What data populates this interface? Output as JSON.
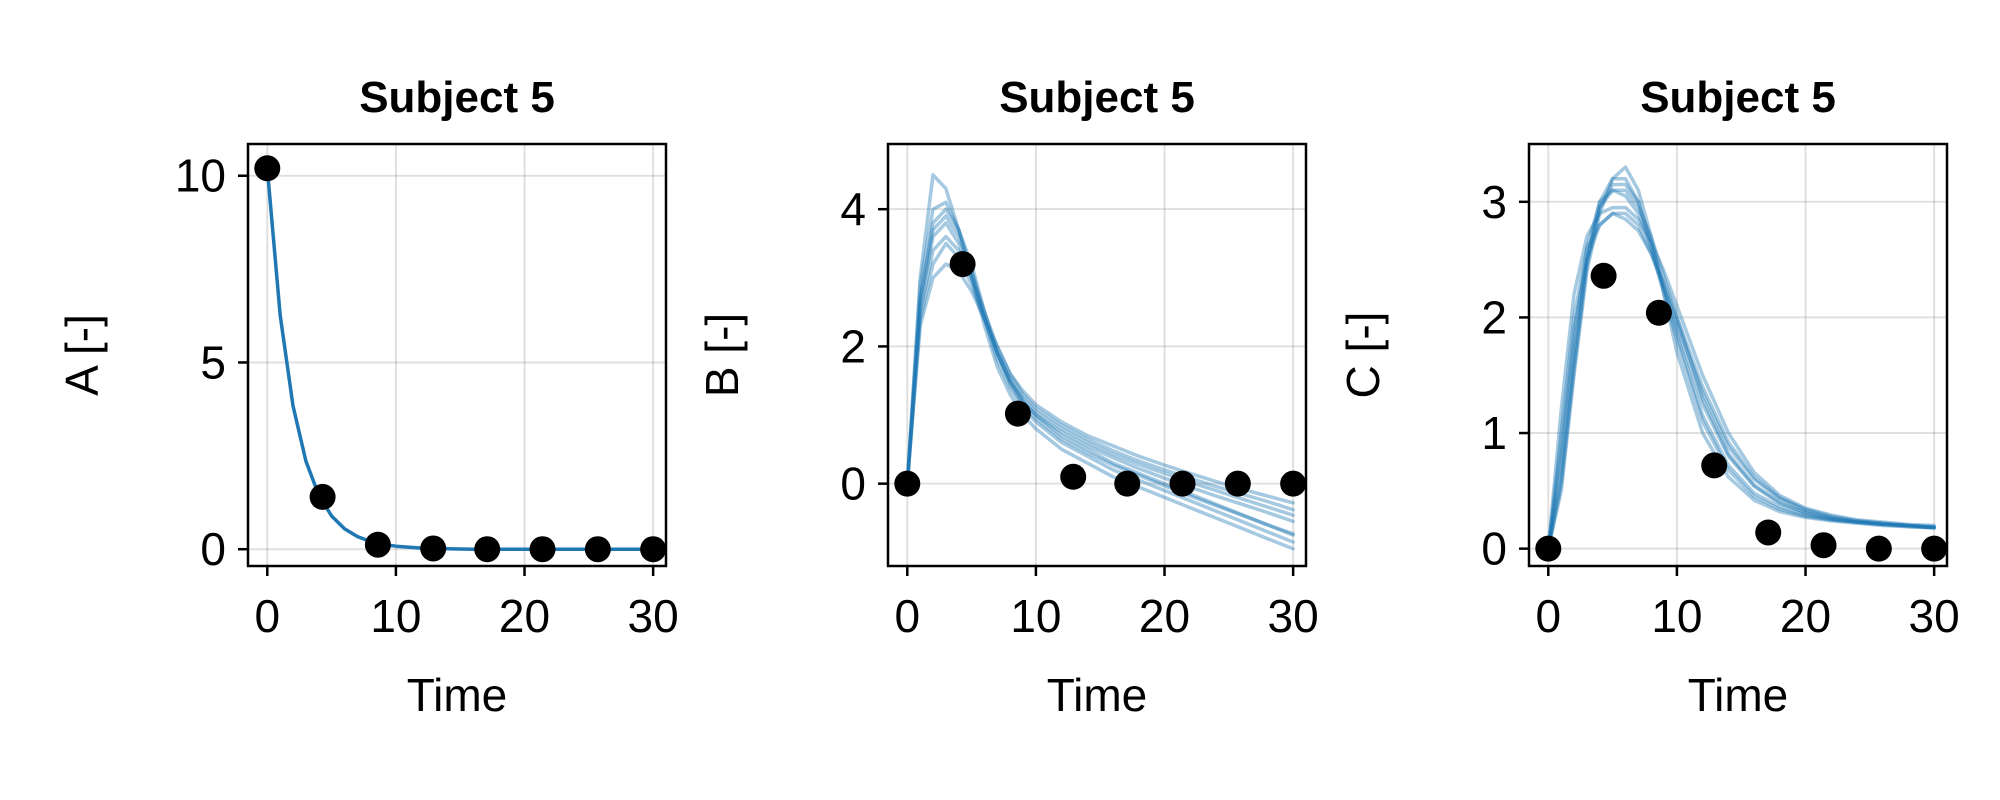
{
  "chart_data": [
    {
      "type": "line",
      "title": "Subject 5",
      "xlabel": "Time",
      "ylabel": "A [-]",
      "xlim": [
        -1.5,
        31
      ],
      "ylim": [
        -0.45,
        10.85
      ],
      "xticks": [
        0,
        10,
        20,
        30
      ],
      "yticks": [
        0,
        5,
        10
      ],
      "grid": true,
      "line_color": "#1f77b4",
      "point_color": "#000000",
      "observations": {
        "x": [
          0,
          4.3,
          8.6,
          12.9,
          17.1,
          21.4,
          25.7,
          30
        ],
        "y": [
          10.2,
          1.4,
          0.12,
          0.02,
          0.0,
          0.0,
          0.0,
          0.0
        ]
      },
      "series": [
        {
          "x": [
            0,
            1,
            2,
            3,
            4,
            5,
            6,
            7,
            8,
            9,
            10,
            12,
            14,
            16,
            18,
            20,
            22,
            24,
            26,
            28,
            30
          ],
          "y": [
            10.2,
            6.26,
            3.84,
            2.36,
            1.45,
            0.89,
            0.55,
            0.34,
            0.21,
            0.13,
            0.08,
            0.03,
            0.01,
            0.0,
            0.0,
            0.0,
            0.0,
            0.0,
            0.0,
            0.0,
            0.0
          ]
        }
      ]
    },
    {
      "type": "line",
      "title": "Subject 5",
      "xlabel": "Time",
      "ylabel": "B [-]",
      "xlim": [
        -1.5,
        31
      ],
      "ylim": [
        -1.2,
        4.95
      ],
      "xticks": [
        0,
        10,
        20,
        30
      ],
      "yticks": [
        0,
        2,
        4
      ],
      "grid": true,
      "line_color": "#1f77b4",
      "point_color": "#000000",
      "observations": {
        "x": [
          0,
          4.3,
          8.6,
          12.9,
          17.1,
          21.4,
          25.7,
          30
        ],
        "y": [
          0.0,
          3.2,
          1.02,
          0.1,
          0.0,
          0.0,
          0.0,
          0.0
        ]
      },
      "series": [
        {
          "x": [
            0,
            1,
            2,
            3,
            4,
            5,
            6,
            7,
            8,
            9,
            10,
            12,
            14,
            16,
            18,
            20,
            22,
            24,
            26,
            28,
            30
          ],
          "y": [
            0,
            3.0,
            4.5,
            4.3,
            3.7,
            3.0,
            2.3,
            1.7,
            1.3,
            1.0,
            0.8,
            0.5,
            0.3,
            0.1,
            -0.05,
            -0.2,
            -0.35,
            -0.5,
            -0.65,
            -0.8,
            -0.95
          ]
        },
        {
          "x": [
            0,
            1,
            2,
            3,
            4,
            5,
            6,
            7,
            8,
            9,
            10,
            12,
            14,
            16,
            18,
            20,
            22,
            24,
            26,
            28,
            30
          ],
          "y": [
            0,
            2.9,
            4.0,
            4.1,
            3.7,
            3.1,
            2.4,
            1.8,
            1.4,
            1.1,
            0.9,
            0.6,
            0.4,
            0.2,
            0.05,
            -0.1,
            -0.25,
            -0.4,
            -0.55,
            -0.7,
            -0.85
          ]
        },
        {
          "x": [
            0,
            1,
            2,
            3,
            4,
            5,
            6,
            7,
            8,
            9,
            10,
            12,
            14,
            16,
            18,
            20,
            22,
            24,
            26,
            28,
            30
          ],
          "y": [
            0,
            2.7,
            3.7,
            3.9,
            3.6,
            3.1,
            2.5,
            1.9,
            1.5,
            1.2,
            1.0,
            0.7,
            0.5,
            0.3,
            0.15,
            0.0,
            -0.15,
            -0.3,
            -0.45,
            -0.6,
            -0.75
          ]
        },
        {
          "x": [
            0,
            1,
            2,
            3,
            4,
            5,
            6,
            7,
            8,
            9,
            10,
            12,
            14,
            16,
            18,
            20,
            22,
            24,
            26,
            28,
            30
          ],
          "y": [
            0,
            2.6,
            3.6,
            3.8,
            3.5,
            3.0,
            2.4,
            1.9,
            1.5,
            1.2,
            1.0,
            0.75,
            0.55,
            0.38,
            0.22,
            0.08,
            -0.05,
            -0.18,
            -0.3,
            -0.42,
            -0.55
          ]
        },
        {
          "x": [
            0,
            1,
            2,
            3,
            4,
            5,
            6,
            7,
            8,
            9,
            10,
            12,
            14,
            16,
            18,
            20,
            22,
            24,
            26,
            28,
            30
          ],
          "y": [
            0,
            2.5,
            3.4,
            3.6,
            3.4,
            3.0,
            2.5,
            2.0,
            1.6,
            1.3,
            1.1,
            0.85,
            0.65,
            0.48,
            0.33,
            0.2,
            0.08,
            -0.04,
            -0.15,
            -0.26,
            -0.38
          ]
        },
        {
          "x": [
            0,
            1,
            2,
            3,
            4,
            5,
            6,
            7,
            8,
            9,
            10,
            12,
            14,
            16,
            18,
            20,
            22,
            24,
            26,
            28,
            30
          ],
          "y": [
            0,
            2.3,
            3.0,
            3.2,
            3.1,
            2.8,
            2.4,
            2.0,
            1.6,
            1.35,
            1.15,
            0.9,
            0.7,
            0.55,
            0.4,
            0.27,
            0.15,
            0.03,
            -0.08,
            -0.18,
            -0.28
          ]
        },
        {
          "x": [
            0,
            1,
            2,
            3,
            4,
            5,
            6,
            7,
            8,
            9,
            10,
            12,
            14,
            16,
            18,
            20,
            22,
            24,
            26,
            28,
            30
          ],
          "y": [
            0,
            2.4,
            3.2,
            3.5,
            3.3,
            2.9,
            2.4,
            1.9,
            1.5,
            1.25,
            1.05,
            0.8,
            0.6,
            0.43,
            0.28,
            0.15,
            0.02,
            -0.1,
            -0.22,
            -0.34,
            -0.46
          ]
        },
        {
          "x": [
            0,
            1,
            2,
            3,
            4,
            5,
            6,
            7,
            8,
            9,
            10,
            12,
            14,
            16,
            18,
            20,
            22,
            24,
            26,
            28,
            30
          ],
          "y": [
            0,
            2.7,
            3.8,
            4.0,
            3.7,
            3.2,
            2.5,
            1.9,
            1.45,
            1.15,
            0.95,
            0.65,
            0.45,
            0.27,
            0.12,
            -0.03,
            -0.18,
            -0.32,
            -0.46,
            -0.6,
            -0.73
          ]
        }
      ]
    },
    {
      "type": "line",
      "title": "Subject 5",
      "xlabel": "Time",
      "ylabel": "C [-]",
      "xlim": [
        -1.5,
        31
      ],
      "ylim": [
        -0.15,
        3.5
      ],
      "xticks": [
        0,
        10,
        20,
        30
      ],
      "yticks": [
        0,
        1,
        2,
        3
      ],
      "grid": true,
      "line_color": "#1f77b4",
      "point_color": "#000000",
      "observations": {
        "x": [
          0,
          4.3,
          8.6,
          12.9,
          17.1,
          21.4,
          25.7,
          30
        ],
        "y": [
          0.0,
          2.36,
          2.04,
          0.72,
          0.14,
          0.03,
          0.0,
          0.0
        ]
      },
      "series": [
        {
          "x": [
            0,
            1,
            2,
            3,
            4,
            5,
            6,
            7,
            8,
            9,
            10,
            12,
            14,
            16,
            18,
            20,
            22,
            24,
            26,
            28,
            30
          ],
          "y": [
            0,
            0.5,
            1.5,
            2.4,
            2.9,
            3.2,
            3.3,
            3.1,
            2.7,
            2.2,
            1.7,
            1.0,
            0.62,
            0.42,
            0.32,
            0.27,
            0.24,
            0.22,
            0.2,
            0.19,
            0.18
          ]
        },
        {
          "x": [
            0,
            1,
            2,
            3,
            4,
            5,
            6,
            7,
            8,
            9,
            10,
            12,
            14,
            16,
            18,
            20,
            22,
            24,
            26,
            28,
            30
          ],
          "y": [
            0,
            0.6,
            1.6,
            2.5,
            3.0,
            3.2,
            3.2,
            3.0,
            2.6,
            2.2,
            1.8,
            1.1,
            0.68,
            0.45,
            0.34,
            0.28,
            0.25,
            0.23,
            0.21,
            0.2,
            0.19
          ]
        },
        {
          "x": [
            0,
            1,
            2,
            3,
            4,
            5,
            6,
            7,
            8,
            9,
            10,
            12,
            14,
            16,
            18,
            20,
            22,
            24,
            26,
            28,
            30
          ],
          "y": [
            0,
            1.2,
            2.2,
            2.7,
            2.9,
            2.95,
            2.95,
            2.85,
            2.65,
            2.4,
            2.1,
            1.5,
            1.0,
            0.66,
            0.46,
            0.35,
            0.29,
            0.25,
            0.23,
            0.21,
            0.2
          ]
        },
        {
          "x": [
            0,
            1,
            2,
            3,
            4,
            5,
            6,
            7,
            8,
            9,
            10,
            12,
            14,
            16,
            18,
            20,
            22,
            24,
            26,
            28,
            30
          ],
          "y": [
            0,
            1.0,
            2.0,
            2.6,
            2.8,
            2.9,
            2.85,
            2.75,
            2.55,
            2.3,
            2.0,
            1.4,
            0.92,
            0.62,
            0.44,
            0.34,
            0.28,
            0.24,
            0.22,
            0.2,
            0.19
          ]
        },
        {
          "x": [
            0,
            1,
            2,
            3,
            4,
            5,
            6,
            7,
            8,
            9,
            10,
            12,
            14,
            16,
            18,
            20,
            22,
            24,
            26,
            28,
            30
          ],
          "y": [
            0,
            0.8,
            1.8,
            2.6,
            3.0,
            3.1,
            3.05,
            2.9,
            2.6,
            2.25,
            1.9,
            1.25,
            0.8,
            0.54,
            0.39,
            0.31,
            0.26,
            0.23,
            0.21,
            0.2,
            0.18
          ]
        },
        {
          "x": [
            0,
            1,
            2,
            3,
            4,
            5,
            6,
            7,
            8,
            9,
            10,
            12,
            14,
            16,
            18,
            20,
            22,
            24,
            26,
            28,
            30
          ],
          "y": [
            0,
            0.7,
            1.7,
            2.5,
            2.95,
            3.1,
            3.1,
            2.95,
            2.7,
            2.35,
            2.0,
            1.3,
            0.82,
            0.55,
            0.4,
            0.31,
            0.26,
            0.23,
            0.21,
            0.2,
            0.18
          ]
        },
        {
          "x": [
            0,
            1,
            2,
            3,
            4,
            5,
            6,
            7,
            8,
            9,
            10,
            12,
            14,
            16,
            18,
            20,
            22,
            24,
            26,
            28,
            30
          ],
          "y": [
            0,
            0.9,
            1.9,
            2.5,
            2.8,
            2.9,
            2.9,
            2.8,
            2.55,
            2.25,
            1.95,
            1.35,
            0.88,
            0.6,
            0.43,
            0.33,
            0.27,
            0.24,
            0.22,
            0.2,
            0.18
          ]
        },
        {
          "x": [
            0,
            1,
            2,
            3,
            4,
            5,
            6,
            7,
            8,
            9,
            10,
            12,
            14,
            16,
            18,
            20,
            22,
            24,
            26,
            28,
            30
          ],
          "y": [
            0,
            0.55,
            1.55,
            2.45,
            2.95,
            3.15,
            3.15,
            3.0,
            2.65,
            2.25,
            1.85,
            1.15,
            0.72,
            0.48,
            0.36,
            0.29,
            0.25,
            0.23,
            0.21,
            0.19,
            0.18
          ]
        }
      ]
    }
  ]
}
